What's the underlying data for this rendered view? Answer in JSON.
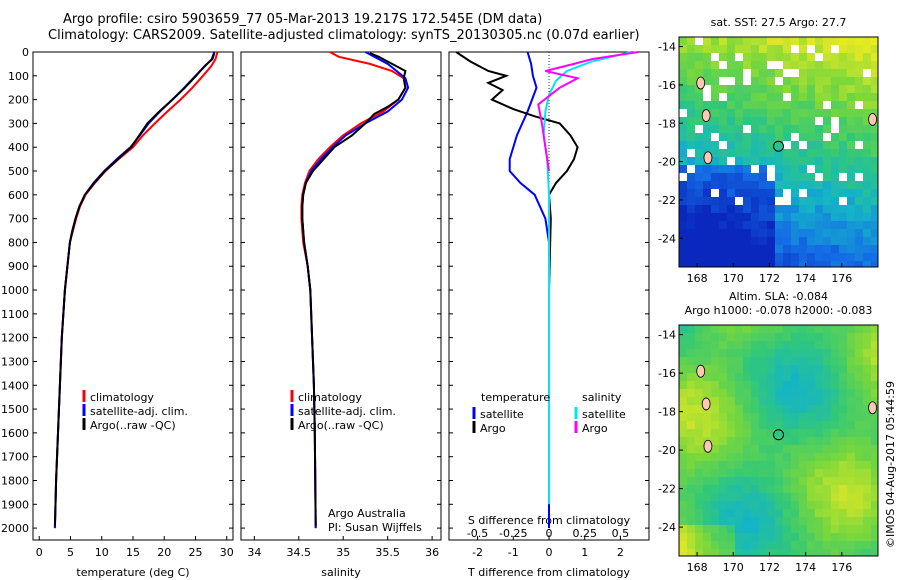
{
  "header": {
    "line1": "Argo profile: csiro 5903659_77 05-Mar-2013 19.217S 172.545E (DM data)",
    "line2": "Climatology: CARS2009. Satellite-adjusted climatology: synTS_20130305.nc (0.07d earlier)"
  },
  "colors": {
    "climatology": "#ff0000",
    "satellite": "#0000ff",
    "argo": "#000000",
    "sal_satellite": "#00e5ee",
    "sal_argo": "#ff00ff"
  },
  "depth_axis": {
    "min": 0,
    "max": 2050,
    "ticks": [
      0,
      100,
      200,
      300,
      400,
      500,
      600,
      700,
      800,
      900,
      1000,
      1100,
      1200,
      1300,
      1400,
      1500,
      1600,
      1700,
      1800,
      1900,
      2000
    ]
  },
  "chart_data": [
    {
      "type": "line",
      "name": "temperature-profile",
      "xlabel": "temperature (deg C)",
      "xlim": [
        -1,
        31
      ],
      "xticks": [
        0,
        5,
        10,
        15,
        20,
        25,
        30
      ],
      "legend": [
        "climatology",
        "satellite-adj. clim.",
        "Argo(..raw -QC)"
      ],
      "series": [
        {
          "name": "climatology",
          "color": "red",
          "x": [
            28.5,
            28.2,
            27.5,
            26.2,
            24.5,
            22.6,
            20.5,
            18.5,
            16.6,
            15.0,
            12.7,
            10.6,
            8.9,
            7.4,
            6.5,
            5.9,
            5.4,
            4.9,
            4.5,
            4.1,
            3.6,
            3.3,
            3.0,
            2.7,
            2.6,
            2.5
          ],
          "depth": [
            0,
            30,
            60,
            100,
            150,
            200,
            250,
            300,
            350,
            400,
            450,
            500,
            550,
            600,
            650,
            700,
            750,
            800,
            900,
            1000,
            1200,
            1400,
            1600,
            1800,
            1900,
            2000
          ]
        },
        {
          "name": "satellite",
          "color": "blue",
          "x": [
            28.0,
            27.6,
            26.5,
            25.0,
            23.2,
            21.3,
            19.3,
            17.5,
            16.1,
            14.6,
            12.4,
            10.4,
            8.7,
            7.3,
            6.4,
            5.8,
            5.3,
            4.9,
            4.5,
            4.1,
            3.6,
            3.3,
            3.0,
            2.7,
            2.6,
            2.5
          ],
          "depth": [
            0,
            30,
            60,
            100,
            150,
            200,
            250,
            300,
            350,
            400,
            450,
            500,
            550,
            600,
            650,
            700,
            750,
            800,
            900,
            1000,
            1200,
            1400,
            1600,
            1800,
            1900,
            2000
          ]
        },
        {
          "name": "Argo",
          "color": "black",
          "x": [
            28.0,
            27.7,
            26.4,
            25.1,
            23.3,
            21.3,
            19.2,
            17.3,
            16.0,
            14.7,
            12.6,
            10.5,
            8.8,
            7.3,
            6.4,
            5.8,
            5.3,
            4.9,
            4.5,
            4.1,
            3.6,
            3.3,
            3.0,
            2.7,
            2.6,
            2.5
          ],
          "depth": [
            5,
            30,
            60,
            100,
            150,
            200,
            250,
            300,
            350,
            400,
            450,
            500,
            550,
            600,
            650,
            700,
            750,
            800,
            900,
            1000,
            1200,
            1400,
            1600,
            1800,
            1900,
            1990
          ]
        }
      ]
    },
    {
      "type": "line",
      "name": "salinity-profile",
      "xlabel": "salinity",
      "xlim": [
        33.85,
        36.1
      ],
      "xticks": [
        34,
        34.5,
        35,
        35.5,
        36
      ],
      "legend": [
        "climatology",
        "satellite-adj. clim.",
        "Argo(..raw -QC)"
      ],
      "annotation": [
        "Argo Australia",
        "PI: Susan Wijffels"
      ],
      "series": [
        {
          "name": "climatology",
          "color": "red",
          "x": [
            34.85,
            34.95,
            35.3,
            35.55,
            35.68,
            35.7,
            35.62,
            35.45,
            35.2,
            35.0,
            34.85,
            34.72,
            34.62,
            34.57,
            34.54,
            34.53,
            34.53,
            34.55,
            34.6,
            34.63,
            34.65,
            34.67,
            34.68,
            34.69
          ],
          "depth": [
            0,
            20,
            50,
            80,
            110,
            150,
            200,
            250,
            300,
            350,
            400,
            450,
            500,
            550,
            600,
            650,
            700,
            800,
            900,
            1000,
            1200,
            1400,
            1600,
            2000
          ]
        },
        {
          "name": "satellite",
          "color": "blue",
          "x": [
            35.25,
            35.35,
            35.5,
            35.6,
            35.7,
            35.73,
            35.66,
            35.5,
            35.25,
            35.03,
            34.88,
            34.75,
            34.64,
            34.58,
            34.55,
            34.54,
            34.54,
            34.56,
            34.6,
            34.63,
            34.65,
            34.67,
            34.68,
            34.69
          ],
          "depth": [
            0,
            20,
            50,
            80,
            110,
            150,
            200,
            250,
            300,
            350,
            400,
            450,
            500,
            550,
            600,
            650,
            700,
            800,
            900,
            1000,
            1200,
            1400,
            1600,
            2000
          ]
        },
        {
          "name": "Argo",
          "color": "black",
          "x": [
            35.3,
            35.4,
            35.55,
            35.7,
            35.68,
            35.7,
            35.62,
            35.5,
            35.35,
            35.25,
            35.1,
            34.9,
            34.78,
            34.66,
            34.58,
            34.55,
            34.54,
            34.54,
            34.56,
            34.6,
            34.63,
            34.65,
            34.67,
            34.68,
            34.69
          ],
          "depth": [
            5,
            20,
            50,
            80,
            110,
            150,
            200,
            230,
            260,
            300,
            350,
            400,
            450,
            500,
            550,
            600,
            650,
            700,
            800,
            900,
            1000,
            1200,
            1400,
            1600,
            1990
          ]
        }
      ]
    },
    {
      "type": "line",
      "name": "difference-profile",
      "xlabel": "T difference from climatology",
      "xlabel_top": "S difference from climatology",
      "xlim": [
        -2.8,
        2.8
      ],
      "xticks": [
        -2,
        -1,
        0,
        1,
        2
      ],
      "xticks_top_pos": [
        -2,
        -1,
        0,
        1,
        2
      ],
      "xticks_top": [
        "-0.5",
        "-0.25",
        "0",
        "0.25",
        "0.5"
      ],
      "legend": {
        "temperature": [
          "satellite",
          "Argo"
        ],
        "salinity": [
          "satellite",
          "Argo"
        ]
      },
      "series": [
        {
          "name": "temperature satellite",
          "color": "blue",
          "x": [
            -0.6,
            -0.5,
            -0.45,
            -0.35,
            -0.6,
            -0.9,
            -1.1,
            -1.1,
            -0.8,
            -0.4,
            -0.1,
            0,
            0,
            0,
            0
          ],
          "depth": [
            0,
            50,
            100,
            150,
            250,
            350,
            450,
            500,
            550,
            600,
            700,
            800,
            1000,
            1500,
            2000
          ]
        },
        {
          "name": "temperature Argo",
          "color": "black",
          "x": [
            -2.6,
            -2.2,
            -1.7,
            -1.2,
            -1.7,
            -1.3,
            -1.6,
            -1.0,
            -0.4,
            0.3,
            0.6,
            0.8,
            0.7,
            0.5,
            0.2,
            0.0,
            0.05,
            0,
            0
          ],
          "depth": [
            0,
            40,
            80,
            100,
            130,
            160,
            200,
            240,
            270,
            300,
            350,
            400,
            450,
            500,
            550,
            600,
            700,
            1000,
            1900
          ]
        },
        {
          "name": "salinity satellite",
          "color": "cyan",
          "x": [
            2.3,
            1.2,
            0.5,
            0.2,
            0,
            -0.1,
            -0.15,
            -0.05,
            0,
            0,
            0
          ],
          "depth": [
            0,
            40,
            80,
            120,
            180,
            250,
            350,
            450,
            600,
            1000,
            1900
          ]
        },
        {
          "name": "salinity Argo",
          "color": "magenta",
          "x": [
            2.5,
            1.2,
            0.7,
            -0.1,
            0.8,
            0.3,
            -0.3,
            -0.2,
            -0.1,
            0
          ],
          "depth": [
            0,
            30,
            50,
            80,
            110,
            150,
            220,
            300,
            400,
            500
          ]
        }
      ]
    },
    {
      "type": "heatmap",
      "name": "sst-map",
      "title": "sat. SST: 27.5  Argo: 27.7",
      "xticks": [
        168,
        170,
        172,
        174,
        176
      ],
      "yticks": [
        -14,
        -16,
        -18,
        -20,
        -22,
        -24
      ],
      "xlim": [
        167,
        178
      ],
      "ylim": [
        -25.5,
        -13.5
      ],
      "marker": {
        "lon": 172.5,
        "lat": -19.2
      }
    },
    {
      "type": "heatmap",
      "name": "sla-map",
      "title_line1": "Altim. SLA: -0.084",
      "title_line2": "Argo h1000: -0.078  h2000: -0.083",
      "xticks": [
        168,
        170,
        172,
        174,
        176
      ],
      "yticks": [
        -14,
        -16,
        -18,
        -20,
        -22,
        -24
      ],
      "xlim": [
        167,
        178
      ],
      "ylim": [
        -25.5,
        -13.5
      ],
      "marker": {
        "lon": 172.5,
        "lat": -19.2
      }
    }
  ],
  "footer": {
    "credit": "©IMOS 04-Aug-2017 05:44:59"
  }
}
